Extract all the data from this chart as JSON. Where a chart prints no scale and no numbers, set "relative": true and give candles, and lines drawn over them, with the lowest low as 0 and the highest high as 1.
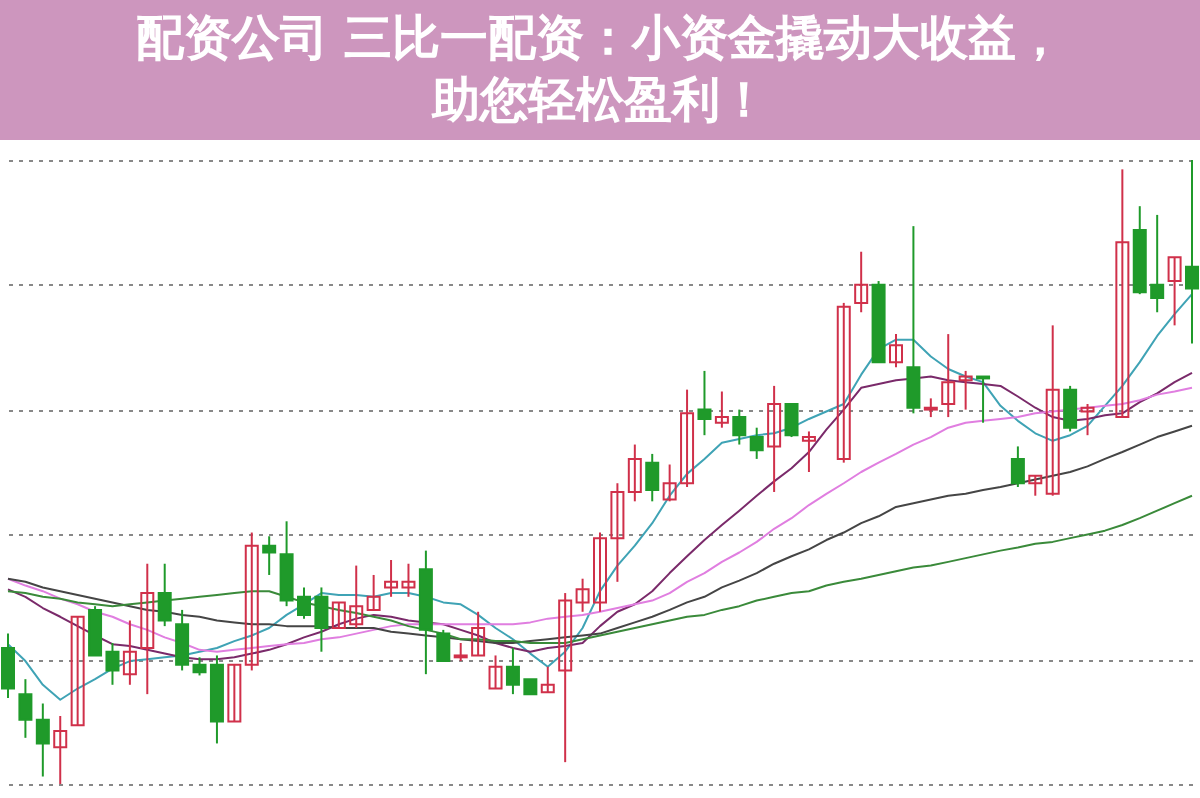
{
  "chart_data": {
    "type": "candlestick",
    "title": "配资公司 三比一配资：小资金撬动大收益，助您轻松盈利！",
    "relative": true,
    "grid": true,
    "categories": [
      null,
      null,
      null,
      null,
      null,
      null,
      null,
      null,
      null,
      null,
      null,
      null,
      null,
      null,
      null,
      null,
      null,
      null,
      null,
      null,
      null,
      null,
      null,
      null,
      null,
      null,
      null,
      null,
      null,
      null,
      null,
      null,
      null,
      null,
      null,
      null,
      null,
      null,
      null,
      null,
      null,
      null,
      null,
      null,
      null,
      null,
      null,
      null,
      null,
      null,
      null,
      null,
      null,
      null,
      null,
      null,
      null,
      null,
      null,
      null,
      null,
      null,
      null,
      null,
      null,
      null,
      null,
      null,
      null
    ],
    "ohlc": [
      [
        0.218,
        0.241,
        0.138,
        0.153
      ],
      [
        0.144,
        0.168,
        0.074,
        0.103
      ],
      [
        0.103,
        0.129,
        0.012,
        0.065
      ],
      [
        0.059,
        0.109,
        0,
        0.085
      ],
      [
        0.094,
        0.268,
        0.094,
        0.268
      ],
      [
        0.279,
        0.285,
        0.206,
        0.206
      ],
      [
        0.212,
        0.226,
        0.159,
        0.182
      ],
      [
        0.176,
        0.262,
        0.159,
        0.212
      ],
      [
        0.218,
        0.353,
        0.144,
        0.306
      ],
      [
        0.306,
        0.353,
        0.253,
        0.262
      ],
      [
        0.256,
        0.279,
        0.182,
        0.191
      ],
      [
        0.191,
        0.203,
        0.174,
        0.179
      ],
      [
        0.191,
        0.206,
        0.065,
        0.1
      ],
      [
        0.1,
        0.191,
        0.1,
        0.191
      ],
      [
        0.191,
        0.403,
        0.182,
        0.382
      ],
      [
        0.382,
        0.397,
        0.335,
        0.371
      ],
      [
        0.368,
        0.421,
        0.285,
        0.294
      ],
      [
        0.3,
        0.315,
        0.265,
        0.271
      ],
      [
        0.3,
        0.315,
        0.212,
        0.25
      ],
      [
        0.25,
        0.291,
        0.25,
        0.291
      ],
      [
        0.256,
        0.35,
        0.25,
        0.285
      ],
      [
        0.279,
        0.335,
        0.279,
        0.3
      ],
      [
        0.315,
        0.359,
        0.3,
        0.324
      ],
      [
        0.315,
        0.353,
        0.3,
        0.324
      ],
      [
        0.344,
        0.374,
        0.176,
        0.247
      ],
      [
        0.241,
        0.247,
        0.197,
        0.197
      ],
      [
        0.203,
        0.226,
        0.197,
        0.206
      ],
      [
        0.206,
        0.276,
        0.206,
        0.25
      ],
      [
        0.153,
        0.206,
        0.153,
        0.188
      ],
      [
        0.188,
        0.218,
        0.144,
        0.159
      ],
      [
        0.168,
        0.168,
        0.144,
        0.144
      ],
      [
        0.147,
        0.188,
        0.147,
        0.159
      ],
      [
        0.182,
        0.306,
        0.035,
        0.294
      ],
      [
        0.291,
        0.329,
        0.276,
        0.312
      ],
      [
        0.291,
        0.403,
        0.276,
        0.394
      ],
      [
        0.394,
        0.482,
        0.324,
        0.468
      ],
      [
        0.468,
        0.544,
        0.453,
        0.521
      ],
      [
        0.515,
        0.529,
        0.453,
        0.471
      ],
      [
        0.456,
        0.512,
        0.453,
        0.482
      ],
      [
        0.482,
        0.632,
        0.476,
        0.594
      ],
      [
        0.6,
        0.662,
        0.559,
        0.585
      ],
      [
        0.579,
        0.629,
        0.571,
        0.588
      ],
      [
        0.588,
        0.6,
        0.544,
        0.559
      ],
      [
        0.556,
        0.571,
        0.521,
        0.535
      ],
      [
        0.541,
        0.638,
        0.468,
        0.609
      ],
      [
        0.609,
        0.609,
        0.556,
        0.559
      ],
      [
        0.55,
        0.565,
        0.5,
        0.556
      ],
      null,
      [
        0.521,
        0.771,
        0.515,
        0.765
      ],
      [
        0.771,
        0.853,
        0.756,
        0.8
      ],
      [
        0.8,
        0.806,
        0.676,
        0.676
      ],
      [
        0.676,
        0.721,
        0.668,
        0.703
      ],
      [
        0.668,
        0.894,
        0.594,
        0.603
      ],
      [
        0.6,
        0.618,
        0.588,
        0.603
      ],
      [
        0.609,
        0.721,
        0.588,
        0.644
      ],
      [
        0.647,
        0.662,
        0.6,
        0.653
      ],
      [
        0.653,
        0.653,
        0.579,
        0.65
      ],
      null,
      [
        0.521,
        0.541,
        0.476,
        0.482
      ],
      [
        0.482,
        0.494,
        0.462,
        0.494
      ],
      [
        0.465,
        0.735,
        0.462,
        0.632
      ],
      [
        0.632,
        0.638,
        0.565,
        0.571
      ],
      [
        0.597,
        0.609,
        0.559,
        0.603
      ],
      null,
      [
        0.588,
        0.985,
        0.588,
        0.868
      ],
      [
        0.888,
        0.926,
        0.785,
        0.788
      ],
      [
        0.8,
        0.912,
        0.756,
        0.779
      ],
      [
        0.806,
        0.844,
        0.735,
        0.844
      ],
      [
        0.829,
        1,
        0.706,
        0.794
      ]
    ],
    "colors": [
      "#1f9a2a",
      "#1f9a2a",
      "#1f9a2a",
      "#d0304a",
      "#d0304a",
      "#1f9a2a",
      "#1f9a2a",
      "#d0304a",
      "#d0304a",
      "#1f9a2a",
      "#1f9a2a",
      "#1f9a2a",
      "#1f9a2a",
      "#d0304a",
      "#d0304a",
      "#1f9a2a",
      "#1f9a2a",
      "#1f9a2a",
      "#1f9a2a",
      "#d0304a",
      "#d0304a",
      "#d0304a",
      "#d0304a",
      "#d0304a",
      "#1f9a2a",
      "#1f9a2a",
      "#d0304a",
      "#d0304a",
      "#d0304a",
      "#1f9a2a",
      "#1f9a2a",
      "#d0304a",
      "#d0304a",
      "#d0304a",
      "#d0304a",
      "#d0304a",
      "#d0304a",
      "#1f9a2a",
      "#d0304a",
      "#d0304a",
      "#1f9a2a",
      "#d0304a",
      "#1f9a2a",
      "#1f9a2a",
      "#d0304a",
      "#1f9a2a",
      "#d0304a",
      null,
      "#d0304a",
      "#d0304a",
      "#1f9a2a",
      "#d0304a",
      "#1f9a2a",
      "#d0304a",
      "#d0304a",
      "#d0304a",
      "#1f9a2a",
      null,
      "#1f9a2a",
      "#d0304a",
      "#d0304a",
      "#1f9a2a",
      "#d0304a",
      null,
      "#d0304a",
      "#1f9a2a",
      "#1f9a2a",
      "#d0304a",
      "#1f9a2a"
    ],
    "series": [
      {
        "type": "line",
        "color": "#3fa3b5",
        "values": [
          0.224,
          0.197,
          0.159,
          0.135,
          0.153,
          0.168,
          0.185,
          0.197,
          0.2,
          0.203,
          0.206,
          0.212,
          0.218,
          0.229,
          0.238,
          0.25,
          0.271,
          0.288,
          0.306,
          0.303,
          0.303,
          0.3,
          0.306,
          0.306,
          0.3,
          0.291,
          0.288,
          0.271,
          0.25,
          0.232,
          0.209,
          0.188,
          0.212,
          0.25,
          0.309,
          0.35,
          0.382,
          0.418,
          0.462,
          0.497,
          0.521,
          0.547,
          0.553,
          0.559,
          0.562,
          0.571,
          0.585,
          0.597,
          0.609,
          0.656,
          0.697,
          0.712,
          0.712,
          0.685,
          0.665,
          0.653,
          0.644,
          0.606,
          0.582,
          0.562,
          0.55,
          0.559,
          0.574,
          0.606,
          0.638,
          0.676,
          0.718,
          0.753,
          0.785
        ]
      },
      {
        "type": "line",
        "color": "#7a2a6a",
        "values": [
          0.312,
          0.3,
          0.282,
          0.268,
          0.253,
          0.238,
          0.224,
          0.221,
          0.215,
          0.209,
          0.203,
          0.2,
          0.2,
          0.203,
          0.209,
          0.215,
          0.224,
          0.235,
          0.244,
          0.256,
          0.265,
          0.271,
          0.268,
          0.262,
          0.259,
          0.256,
          0.247,
          0.238,
          0.226,
          0.218,
          0.212,
          0.218,
          0.221,
          0.226,
          0.253,
          0.276,
          0.288,
          0.309,
          0.338,
          0.365,
          0.391,
          0.415,
          0.438,
          0.462,
          0.485,
          0.506,
          0.532,
          0.568,
          0.6,
          0.635,
          0.641,
          0.647,
          0.65,
          0.653,
          0.647,
          0.644,
          0.641,
          0.638,
          0.621,
          0.603,
          0.588,
          0.582,
          0.585,
          0.591,
          0.594,
          0.612,
          0.626,
          0.644,
          0.659
        ]
      },
      {
        "type": "line",
        "color": "#e07ee0",
        "values": [
          0.329,
          0.318,
          0.309,
          0.297,
          0.288,
          0.276,
          0.268,
          0.256,
          0.247,
          0.235,
          0.226,
          0.215,
          0.212,
          0.215,
          0.218,
          0.221,
          0.224,
          0.226,
          0.232,
          0.235,
          0.241,
          0.247,
          0.253,
          0.256,
          0.256,
          0.256,
          0.256,
          0.256,
          0.256,
          0.256,
          0.259,
          0.265,
          0.268,
          0.271,
          0.276,
          0.282,
          0.288,
          0.294,
          0.306,
          0.324,
          0.338,
          0.356,
          0.371,
          0.388,
          0.409,
          0.426,
          0.447,
          0.465,
          0.482,
          0.5,
          0.515,
          0.529,
          0.544,
          0.556,
          0.571,
          0.579,
          0.582,
          0.585,
          0.588,
          0.594,
          0.597,
          0.6,
          0.603,
          0.606,
          0.609,
          0.615,
          0.624,
          0.629,
          0.635
        ]
      },
      {
        "type": "line",
        "color": "#454545",
        "values": [
          0.329,
          0.324,
          0.315,
          0.309,
          0.303,
          0.297,
          0.291,
          0.285,
          0.279,
          0.276,
          0.271,
          0.268,
          0.262,
          0.259,
          0.256,
          0.256,
          0.253,
          0.253,
          0.253,
          0.25,
          0.25,
          0.25,
          0.244,
          0.241,
          0.238,
          0.235,
          0.232,
          0.229,
          0.226,
          0.226,
          0.229,
          0.232,
          0.235,
          0.238,
          0.241,
          0.25,
          0.259,
          0.268,
          0.279,
          0.291,
          0.3,
          0.315,
          0.326,
          0.338,
          0.353,
          0.365,
          0.376,
          0.391,
          0.403,
          0.418,
          0.429,
          0.444,
          0.45,
          0.456,
          0.462,
          0.465,
          0.471,
          0.476,
          0.482,
          0.488,
          0.494,
          0.5,
          0.509,
          0.521,
          0.532,
          0.544,
          0.556,
          0.565,
          0.574
        ]
      },
      {
        "type": "line",
        "color": "#3a8a3a",
        "values": [
          0.309,
          0.306,
          0.3,
          0.297,
          0.291,
          0.288,
          0.285,
          0.288,
          0.291,
          0.294,
          0.297,
          0.3,
          0.303,
          0.306,
          0.309,
          0.309,
          0.3,
          0.291,
          0.285,
          0.279,
          0.274,
          0.268,
          0.262,
          0.253,
          0.247,
          0.241,
          0.232,
          0.232,
          0.229,
          0.229,
          0.226,
          0.226,
          0.226,
          0.232,
          0.238,
          0.244,
          0.25,
          0.256,
          0.262,
          0.268,
          0.271,
          0.279,
          0.285,
          0.294,
          0.3,
          0.306,
          0.309,
          0.318,
          0.324,
          0.329,
          0.335,
          0.341,
          0.347,
          0.35,
          0.356,
          0.362,
          0.368,
          0.374,
          0.379,
          0.385,
          0.388,
          0.394,
          0.4,
          0.406,
          0.415,
          0.426,
          0.438,
          0.45,
          0.462
        ]
      }
    ]
  }
}
